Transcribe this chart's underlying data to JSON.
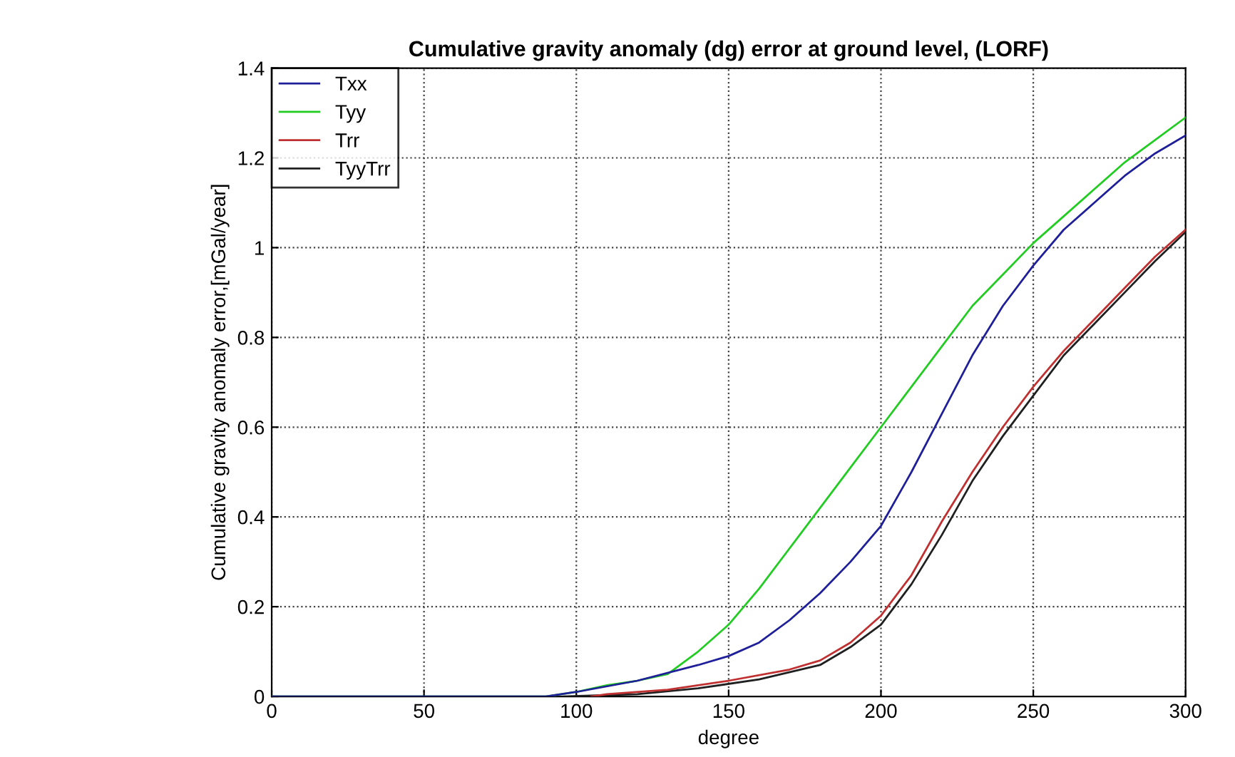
{
  "chart_data": {
    "type": "line",
    "title": "Cumulative gravity anomaly (dg) error at ground level, (LORF)",
    "xlabel": "degree",
    "ylabel": "Cumulative gravity anomaly error,[mGal/year]",
    "xlim": [
      0,
      300
    ],
    "xticks": [
      0,
      50,
      100,
      150,
      200,
      250,
      300
    ],
    "ylim": [
      0,
      1.4
    ],
    "yticks": [
      0,
      0.2,
      0.4,
      0.6,
      0.8,
      1,
      1.2,
      1.4
    ],
    "grid": true,
    "legend": "top left",
    "line_style": "solid",
    "series": [
      {
        "name": "Txx",
        "color": "#1f1f9a",
        "x": [
          0,
          90,
          100,
          120,
          140,
          150,
          160,
          170,
          180,
          190,
          200,
          210,
          220,
          230,
          240,
          250,
          260,
          270,
          280,
          290,
          300
        ],
        "values": [
          0,
          0,
          0.01,
          0.035,
          0.07,
          0.09,
          0.12,
          0.17,
          0.23,
          0.3,
          0.38,
          0.5,
          0.63,
          0.76,
          0.87,
          0.96,
          1.04,
          1.1,
          1.16,
          1.21,
          1.25
        ]
      },
      {
        "name": "Tyy",
        "color": "#22cc22",
        "x": [
          0,
          90,
          100,
          110,
          120,
          130,
          140,
          150,
          160,
          170,
          180,
          190,
          200,
          210,
          220,
          230,
          240,
          250,
          260,
          270,
          280,
          290,
          300
        ],
        "values": [
          0,
          0,
          0.01,
          0.025,
          0.035,
          0.05,
          0.1,
          0.16,
          0.24,
          0.33,
          0.42,
          0.51,
          0.6,
          0.69,
          0.78,
          0.87,
          0.94,
          1.01,
          1.07,
          1.13,
          1.19,
          1.24,
          1.29
        ]
      },
      {
        "name": "Trr",
        "color": "#c03030",
        "x": [
          105,
          110,
          130,
          150,
          170,
          180,
          190,
          200,
          210,
          220,
          230,
          240,
          250,
          260,
          270,
          280,
          290,
          300
        ],
        "values": [
          0,
          0.005,
          0.015,
          0.035,
          0.06,
          0.08,
          0.12,
          0.18,
          0.27,
          0.39,
          0.5,
          0.6,
          0.69,
          0.77,
          0.84,
          0.91,
          0.98,
          1.04
        ]
      },
      {
        "name": "TyyTrr",
        "color": "#202020",
        "x": [
          0,
          95,
          120,
          140,
          160,
          180,
          190,
          200,
          210,
          220,
          230,
          240,
          250,
          260,
          270,
          280,
          290,
          300
        ],
        "values": [
          0,
          0,
          0.005,
          0.018,
          0.038,
          0.07,
          0.11,
          0.16,
          0.25,
          0.36,
          0.48,
          0.58,
          0.67,
          0.76,
          0.83,
          0.9,
          0.97,
          1.035
        ]
      }
    ]
  }
}
